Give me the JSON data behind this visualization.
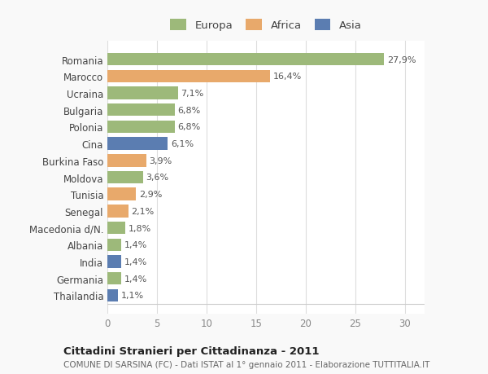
{
  "categories": [
    "Thailandia",
    "Germania",
    "India",
    "Albania",
    "Macedonia d/N.",
    "Senegal",
    "Tunisia",
    "Moldova",
    "Burkina Faso",
    "Cina",
    "Polonia",
    "Bulgaria",
    "Ucraina",
    "Marocco",
    "Romania"
  ],
  "values": [
    1.1,
    1.4,
    1.4,
    1.4,
    1.8,
    2.1,
    2.9,
    3.6,
    3.9,
    6.1,
    6.8,
    6.8,
    7.1,
    16.4,
    27.9
  ],
  "colors": [
    "#5b7db1",
    "#9db97a",
    "#5b7db1",
    "#9db97a",
    "#9db97a",
    "#e8a96b",
    "#e8a96b",
    "#9db97a",
    "#e8a96b",
    "#5b7db1",
    "#9db97a",
    "#9db97a",
    "#9db97a",
    "#e8a96b",
    "#9db97a"
  ],
  "labels": [
    "1,1%",
    "1,4%",
    "1,4%",
    "1,4%",
    "1,8%",
    "2,1%",
    "2,9%",
    "3,6%",
    "3,9%",
    "6,1%",
    "6,8%",
    "6,8%",
    "7,1%",
    "16,4%",
    "27,9%"
  ],
  "legend_labels": [
    "Europa",
    "Africa",
    "Asia"
  ],
  "legend_colors": [
    "#9db97a",
    "#e8a96b",
    "#5b7db1"
  ],
  "title": "Cittadini Stranieri per Cittadinanza - 2011",
  "subtitle": "COMUNE DI SARSINA (FC) - Dati ISTAT al 1° gennaio 2011 - Elaborazione TUTTITALIA.IT",
  "xlim": [
    0,
    32
  ],
  "xticks": [
    0,
    5,
    10,
    15,
    20,
    25,
    30
  ],
  "bg_color": "#f9f9f9",
  "bar_bg_color": "#ffffff",
  "grid_color": "#dddddd"
}
